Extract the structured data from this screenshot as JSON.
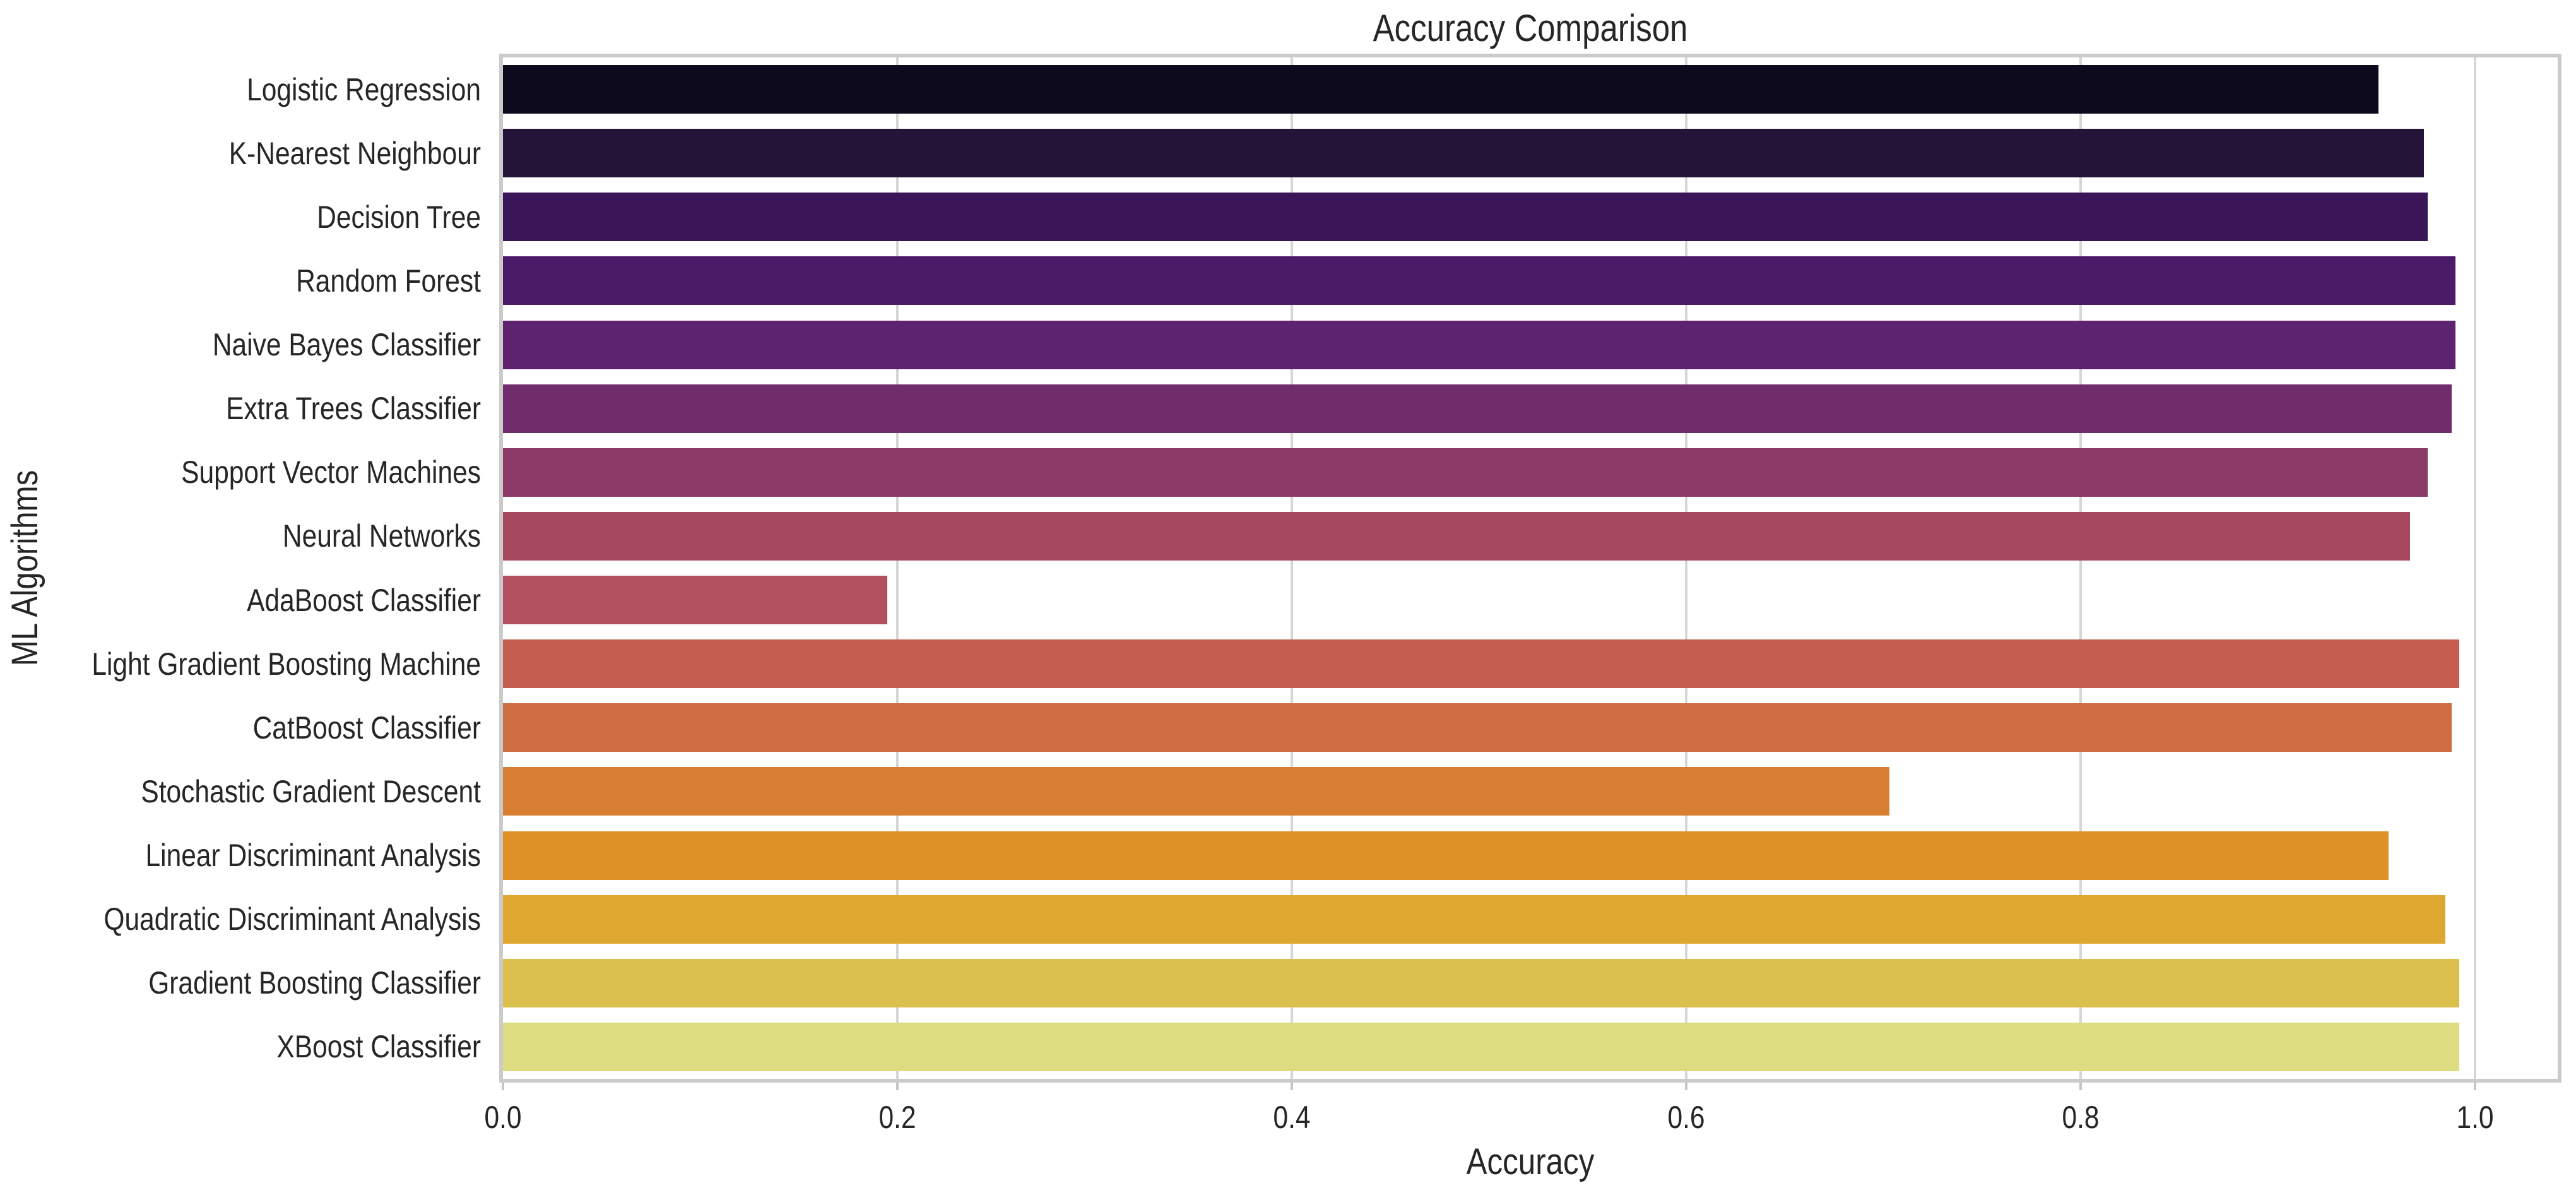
{
  "figure": {
    "title": "Accuracy Comparison",
    "xlabel": "Accuracy",
    "ylabel": "ML Algorithms"
  },
  "chart_data": {
    "type": "bar",
    "orientation": "horizontal",
    "title": "Accuracy Comparison",
    "xlabel": "Accuracy",
    "ylabel": "ML Algorithms",
    "categories": [
      "Logistic Regression",
      "K-Nearest Neighbour",
      "Decision Tree",
      "Random Forest",
      "Naive Bayes Classifier",
      "Extra Trees Classifier",
      "Support Vector Machines",
      "Neural Networks",
      "AdaBoost Classifier",
      "Light Gradient Boosting Machine",
      "CatBoost Classifier",
      "Stochastic Gradient Descent",
      "Linear Discriminant Analysis",
      "Quadratic Discriminant Analysis",
      "Gradient Boosting Classifier",
      "XBoost Classifier"
    ],
    "values": [
      0.951,
      0.974,
      0.976,
      0.99,
      0.99,
      0.988,
      0.976,
      0.967,
      0.195,
      0.992,
      0.988,
      0.703,
      0.956,
      0.985,
      0.992,
      0.992
    ],
    "bar_colors": [
      "#0d0a1e",
      "#241438",
      "#3a1659",
      "#4c1b67",
      "#5d236e",
      "#712c6b",
      "#8c3a67",
      "#a6485f",
      "#b45160",
      "#c55e51",
      "#ce6d43",
      "#d87e33",
      "#dd9127",
      "#dea72f",
      "#dcc04e",
      "#dedc80"
    ],
    "xticks": [
      0.0,
      0.2,
      0.4,
      0.6,
      0.8,
      1.0
    ],
    "xtick_labels": [
      "0.0",
      "0.2",
      "0.4",
      "0.6",
      "0.8",
      "1.0"
    ],
    "xlim": [
      0.0,
      1.042
    ],
    "grid": "vertical",
    "legend": "none",
    "colors": {
      "background": "#ffffff",
      "spine": "#cbcbcb",
      "grid": "#d6d6d6",
      "tick": "#c6c6c6",
      "text": "#262626"
    }
  }
}
